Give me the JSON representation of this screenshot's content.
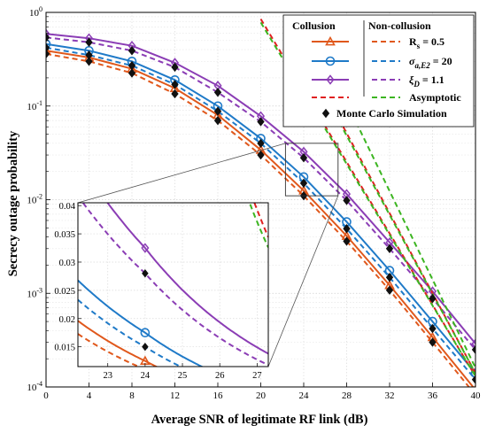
{
  "chart_data": {
    "type": "line",
    "xlabel": "Average SNR of legitimate RF link (dB)",
    "ylabel": "Secrecy outage probability",
    "xlim": [
      0,
      40
    ],
    "ylim": [
      0.0001,
      1
    ],
    "yscale": "log",
    "grid": true,
    "x_ticks": [
      "0",
      "4",
      "8",
      "12",
      "16",
      "20",
      "24",
      "28",
      "32",
      "36",
      "40"
    ],
    "y_ticks": [
      "10^0",
      "10^-1",
      "10^-2",
      "10^-3",
      "10^-4"
    ],
    "legend": {
      "placement": "top-right",
      "header_left": "Collusion",
      "header_right": "Non-collusion",
      "rows": [
        {
          "label_main": "R",
          "label_sub": "s",
          "label_tail": " = 0.5"
        },
        {
          "label_main": "σ",
          "label_sub": "a,E2",
          "label_tail": " = 20"
        },
        {
          "label_main": "ξ",
          "label_sub": "D",
          "label_tail": " = 1.1"
        },
        {
          "label_main": "Asymptotic",
          "label_sub": "",
          "label_tail": ""
        },
        {
          "label_main": "Monte Carlo Simulation",
          "label_sub": "",
          "label_tail": ""
        }
      ]
    },
    "colors": {
      "orange": "#e0581c",
      "blue": "#1f7ac8",
      "purple": "#8b3db5",
      "green": "#3cb521",
      "red": "#e02020",
      "marker": "#111111"
    },
    "series": [
      {
        "name": "R_s = 0.5 (Collusion)",
        "color": "orange",
        "style": "solid",
        "marker": "triangle",
        "x": [
          0,
          4,
          8,
          12,
          16,
          20,
          24,
          28,
          32,
          36,
          40
        ],
        "y": [
          0.39,
          0.33,
          0.25,
          0.155,
          0.08,
          0.034,
          0.0125,
          0.0041,
          0.00122,
          0.00034,
          9.3e-05
        ]
      },
      {
        "name": "R_s = 0.5 (Non-collusion)",
        "color": "orange",
        "style": "dashed",
        "marker": "none",
        "x": [
          0,
          4,
          8,
          12,
          16,
          20,
          24,
          28,
          32,
          36,
          40
        ],
        "y": [
          0.36,
          0.3,
          0.225,
          0.135,
          0.07,
          0.03,
          0.011,
          0.0036,
          0.00108,
          0.0003,
          8.2e-05
        ]
      },
      {
        "name": "σ_a,E2 = 20 (Collusion)",
        "color": "blue",
        "style": "solid",
        "marker": "circle",
        "x": [
          0,
          4,
          8,
          12,
          16,
          20,
          24,
          28,
          32,
          36,
          40
        ],
        "y": [
          0.46,
          0.39,
          0.3,
          0.19,
          0.1,
          0.045,
          0.0175,
          0.0058,
          0.00175,
          0.0005,
          0.00014
        ]
      },
      {
        "name": "σ_a,E2 = 20 (Non-collusion)",
        "color": "blue",
        "style": "dashed",
        "marker": "none",
        "x": [
          0,
          4,
          8,
          12,
          16,
          20,
          24,
          28,
          32,
          36,
          40
        ],
        "y": [
          0.42,
          0.35,
          0.27,
          0.17,
          0.088,
          0.04,
          0.015,
          0.0049,
          0.00148,
          0.00042,
          0.00012
        ]
      },
      {
        "name": "ξ_D = 1.1 (Collusion)",
        "color": "purple",
        "style": "solid",
        "marker": "diamond",
        "x": [
          0,
          4,
          8,
          12,
          16,
          20,
          24,
          28,
          32,
          36,
          40
        ],
        "y": [
          0.59,
          0.53,
          0.44,
          0.29,
          0.165,
          0.078,
          0.0325,
          0.0115,
          0.0035,
          0.00105,
          0.00029
        ]
      },
      {
        "name": "ξ_D = 1.1 (Non-collusion)",
        "color": "purple",
        "style": "dashed",
        "marker": "none",
        "x": [
          0,
          4,
          8,
          12,
          16,
          20,
          24,
          28,
          32,
          36,
          40
        ],
        "y": [
          0.54,
          0.48,
          0.39,
          0.26,
          0.14,
          0.068,
          0.028,
          0.0098,
          0.003,
          0.00088,
          0.00025
        ]
      },
      {
        "name": "Asymptotic (Collusion) 1",
        "color": "red",
        "style": "dashed",
        "marker": "none",
        "x": [
          20,
          40
        ],
        "y": [
          0.85,
          0.00013
        ]
      },
      {
        "name": "Asymptotic (Collusion) 2",
        "color": "red",
        "style": "dashed",
        "marker": "none",
        "x": [
          23,
          40
        ],
        "y": [
          0.6,
          0.00014
        ]
      },
      {
        "name": "Asymptotic (Non-collusion) 1",
        "color": "green",
        "style": "dashed",
        "marker": "none",
        "x": [
          20,
          40
        ],
        "y": [
          0.78,
          0.00013
        ]
      },
      {
        "name": "Asymptotic (Non-collusion) 2",
        "color": "green",
        "style": "dashed",
        "marker": "none",
        "x": [
          23,
          40
        ],
        "y": [
          0.55,
          0.00014
        ]
      },
      {
        "name": "Asymptotic (Non-collusion) 3",
        "color": "green",
        "style": "dashed",
        "marker": "none",
        "x": [
          26,
          40
        ],
        "y": [
          0.32,
          0.00016
        ]
      },
      {
        "name": "Monte Carlo Simulation",
        "color": "marker",
        "style": "none",
        "marker": "diamond",
        "x": [
          0,
          4,
          8,
          12,
          16,
          20,
          24,
          28,
          32,
          36,
          40,
          0,
          4,
          8,
          12,
          16,
          20,
          24,
          28,
          32,
          36,
          40,
          0,
          4,
          8,
          12,
          16,
          20,
          24,
          28,
          32,
          36,
          40
        ],
        "y": [
          0.36,
          0.3,
          0.225,
          0.135,
          0.07,
          0.03,
          0.011,
          0.0036,
          0.00108,
          0.0003,
          8.2e-05,
          0.42,
          0.35,
          0.27,
          0.17,
          0.088,
          0.04,
          0.015,
          0.0049,
          0.00148,
          0.00042,
          0.00012,
          0.54,
          0.48,
          0.39,
          0.26,
          0.14,
          0.068,
          0.028,
          0.0098,
          0.003,
          0.00088,
          0.00025
        ]
      }
    ],
    "inset": {
      "source_box": {
        "xlim": [
          22.3,
          27.2
        ],
        "ylim": [
          0.011,
          0.04
        ]
      },
      "xlim": [
        22.2,
        27.3
      ],
      "ylim": [
        0.0115,
        0.0405
      ],
      "x_ticks": [
        "23",
        "24",
        "25",
        "26",
        "27"
      ],
      "y_ticks": [
        "0.015",
        "0.02",
        "0.025",
        "0.03",
        "0.035",
        "0.04"
      ]
    }
  }
}
